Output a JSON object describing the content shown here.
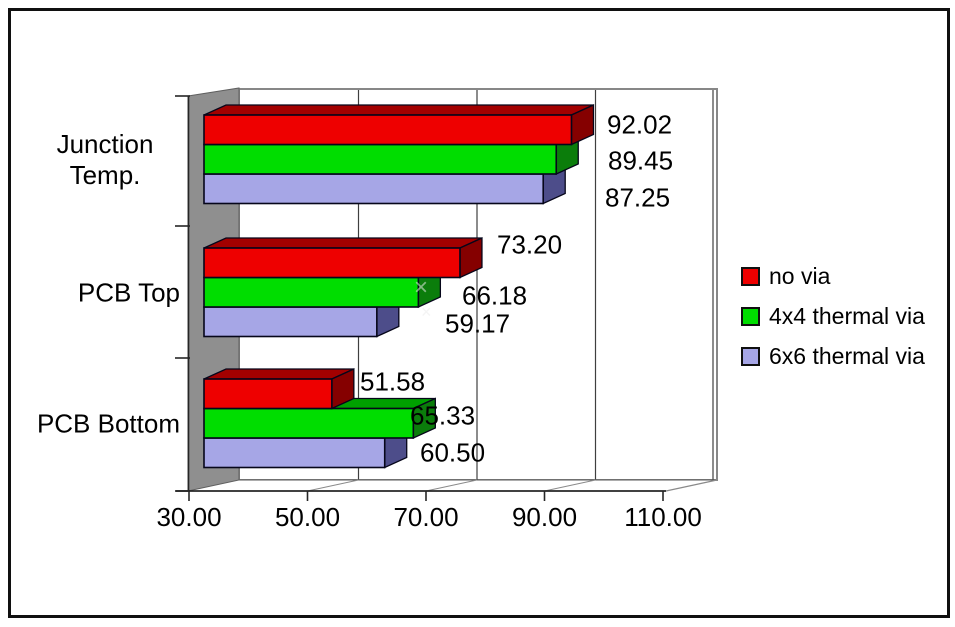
{
  "chart_data": {
    "type": "bar",
    "orientation": "horizontal",
    "effect": "3d",
    "title": "",
    "xlabel": "",
    "ylabel": "",
    "categories": [
      "Junction Temp.",
      "PCB Top",
      "PCB Bottom"
    ],
    "series": [
      {
        "name": "no via",
        "color": "#ee0000",
        "color_top": "#a30000",
        "color_side": "#850000",
        "values": [
          92.02,
          73.2,
          51.58
        ]
      },
      {
        "name": "4x4 thermal via",
        "color": "#00dd00",
        "color_top": "#00a000",
        "color_side": "#0b7d0b",
        "values": [
          89.45,
          66.18,
          65.33
        ]
      },
      {
        "name": "6x6 thermal via",
        "color": "#a6a6e6",
        "color_top": "#8080c0",
        "color_side": "#4d4d8a",
        "values": [
          87.25,
          59.17,
          60.5
        ]
      }
    ],
    "value_labels": [
      [
        "92.02",
        "73.20",
        "51.58"
      ],
      [
        "89.45",
        "66.18",
        "65.33"
      ],
      [
        "87.25",
        "59.17",
        "60.50"
      ]
    ],
    "x_ticks": [
      "30.00",
      "50.00",
      "70.00",
      "90.00",
      "110.00"
    ],
    "x_tick_values": [
      30,
      50,
      70,
      90,
      110
    ],
    "xlim": [
      30,
      110
    ],
    "grid": true,
    "legend_position": "right",
    "background": "#ffffff",
    "wall_color": "#8f8f8f",
    "border_color": "#101010"
  }
}
